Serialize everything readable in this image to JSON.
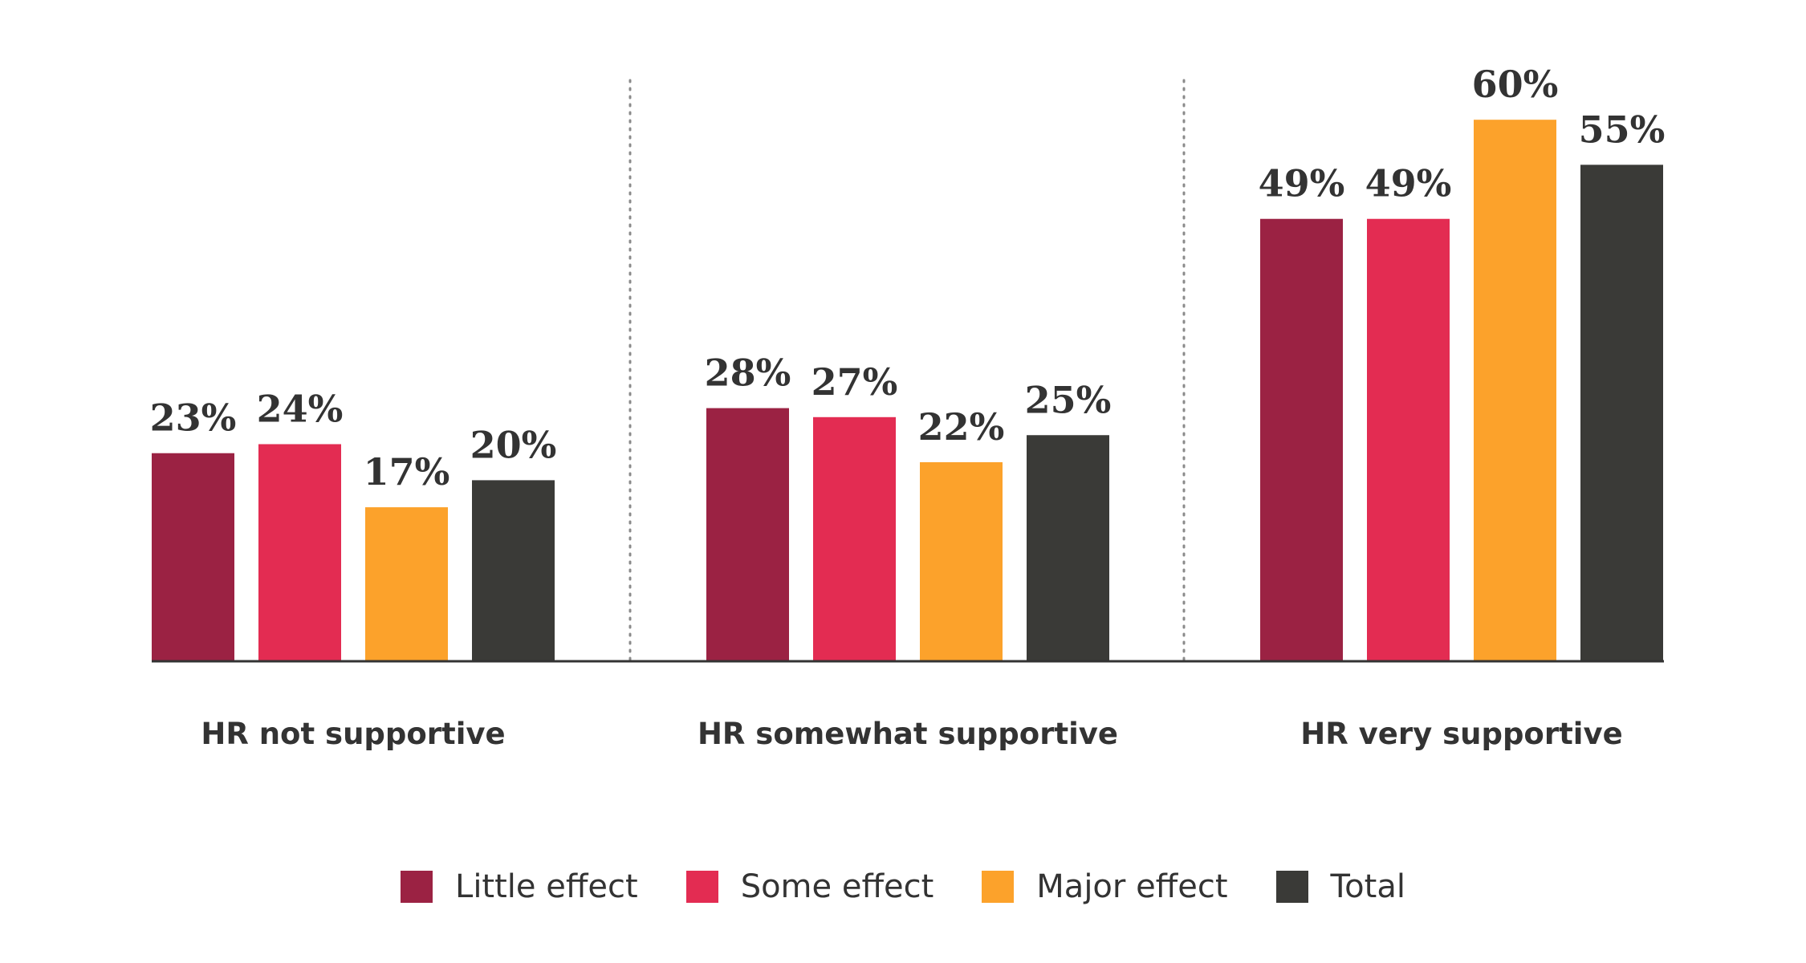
{
  "chart_data": {
    "type": "bar",
    "categories": [
      "HR not supportive",
      "HR somewhat supportive",
      "HR very supportive"
    ],
    "series": [
      {
        "name": "Little effect",
        "values": [
          23,
          28,
          49
        ],
        "labels": [
          "23%",
          "28%",
          "49%"
        ],
        "color": "#9B2243"
      },
      {
        "name": "Some effect",
        "values": [
          24,
          27,
          49
        ],
        "labels": [
          "24%",
          "27%",
          "49%"
        ],
        "color": "#E32C52"
      },
      {
        "name": "Major effect",
        "values": [
          17,
          22,
          60
        ],
        "labels": [
          "17%",
          "22%",
          "60%"
        ],
        "color": "#FCA22B"
      },
      {
        "name": "Total",
        "values": [
          20,
          25,
          55
        ],
        "labels": [
          "20%",
          "25%",
          "55%"
        ],
        "color": "#3A3A37"
      }
    ],
    "ylim": [
      0,
      70
    ],
    "unit": "%",
    "grid": false,
    "legend_position": "bottom",
    "group_separators": "dotted"
  },
  "colors": {
    "axis": "#333333",
    "separator": "#8a8a8a",
    "text": "#333333"
  }
}
